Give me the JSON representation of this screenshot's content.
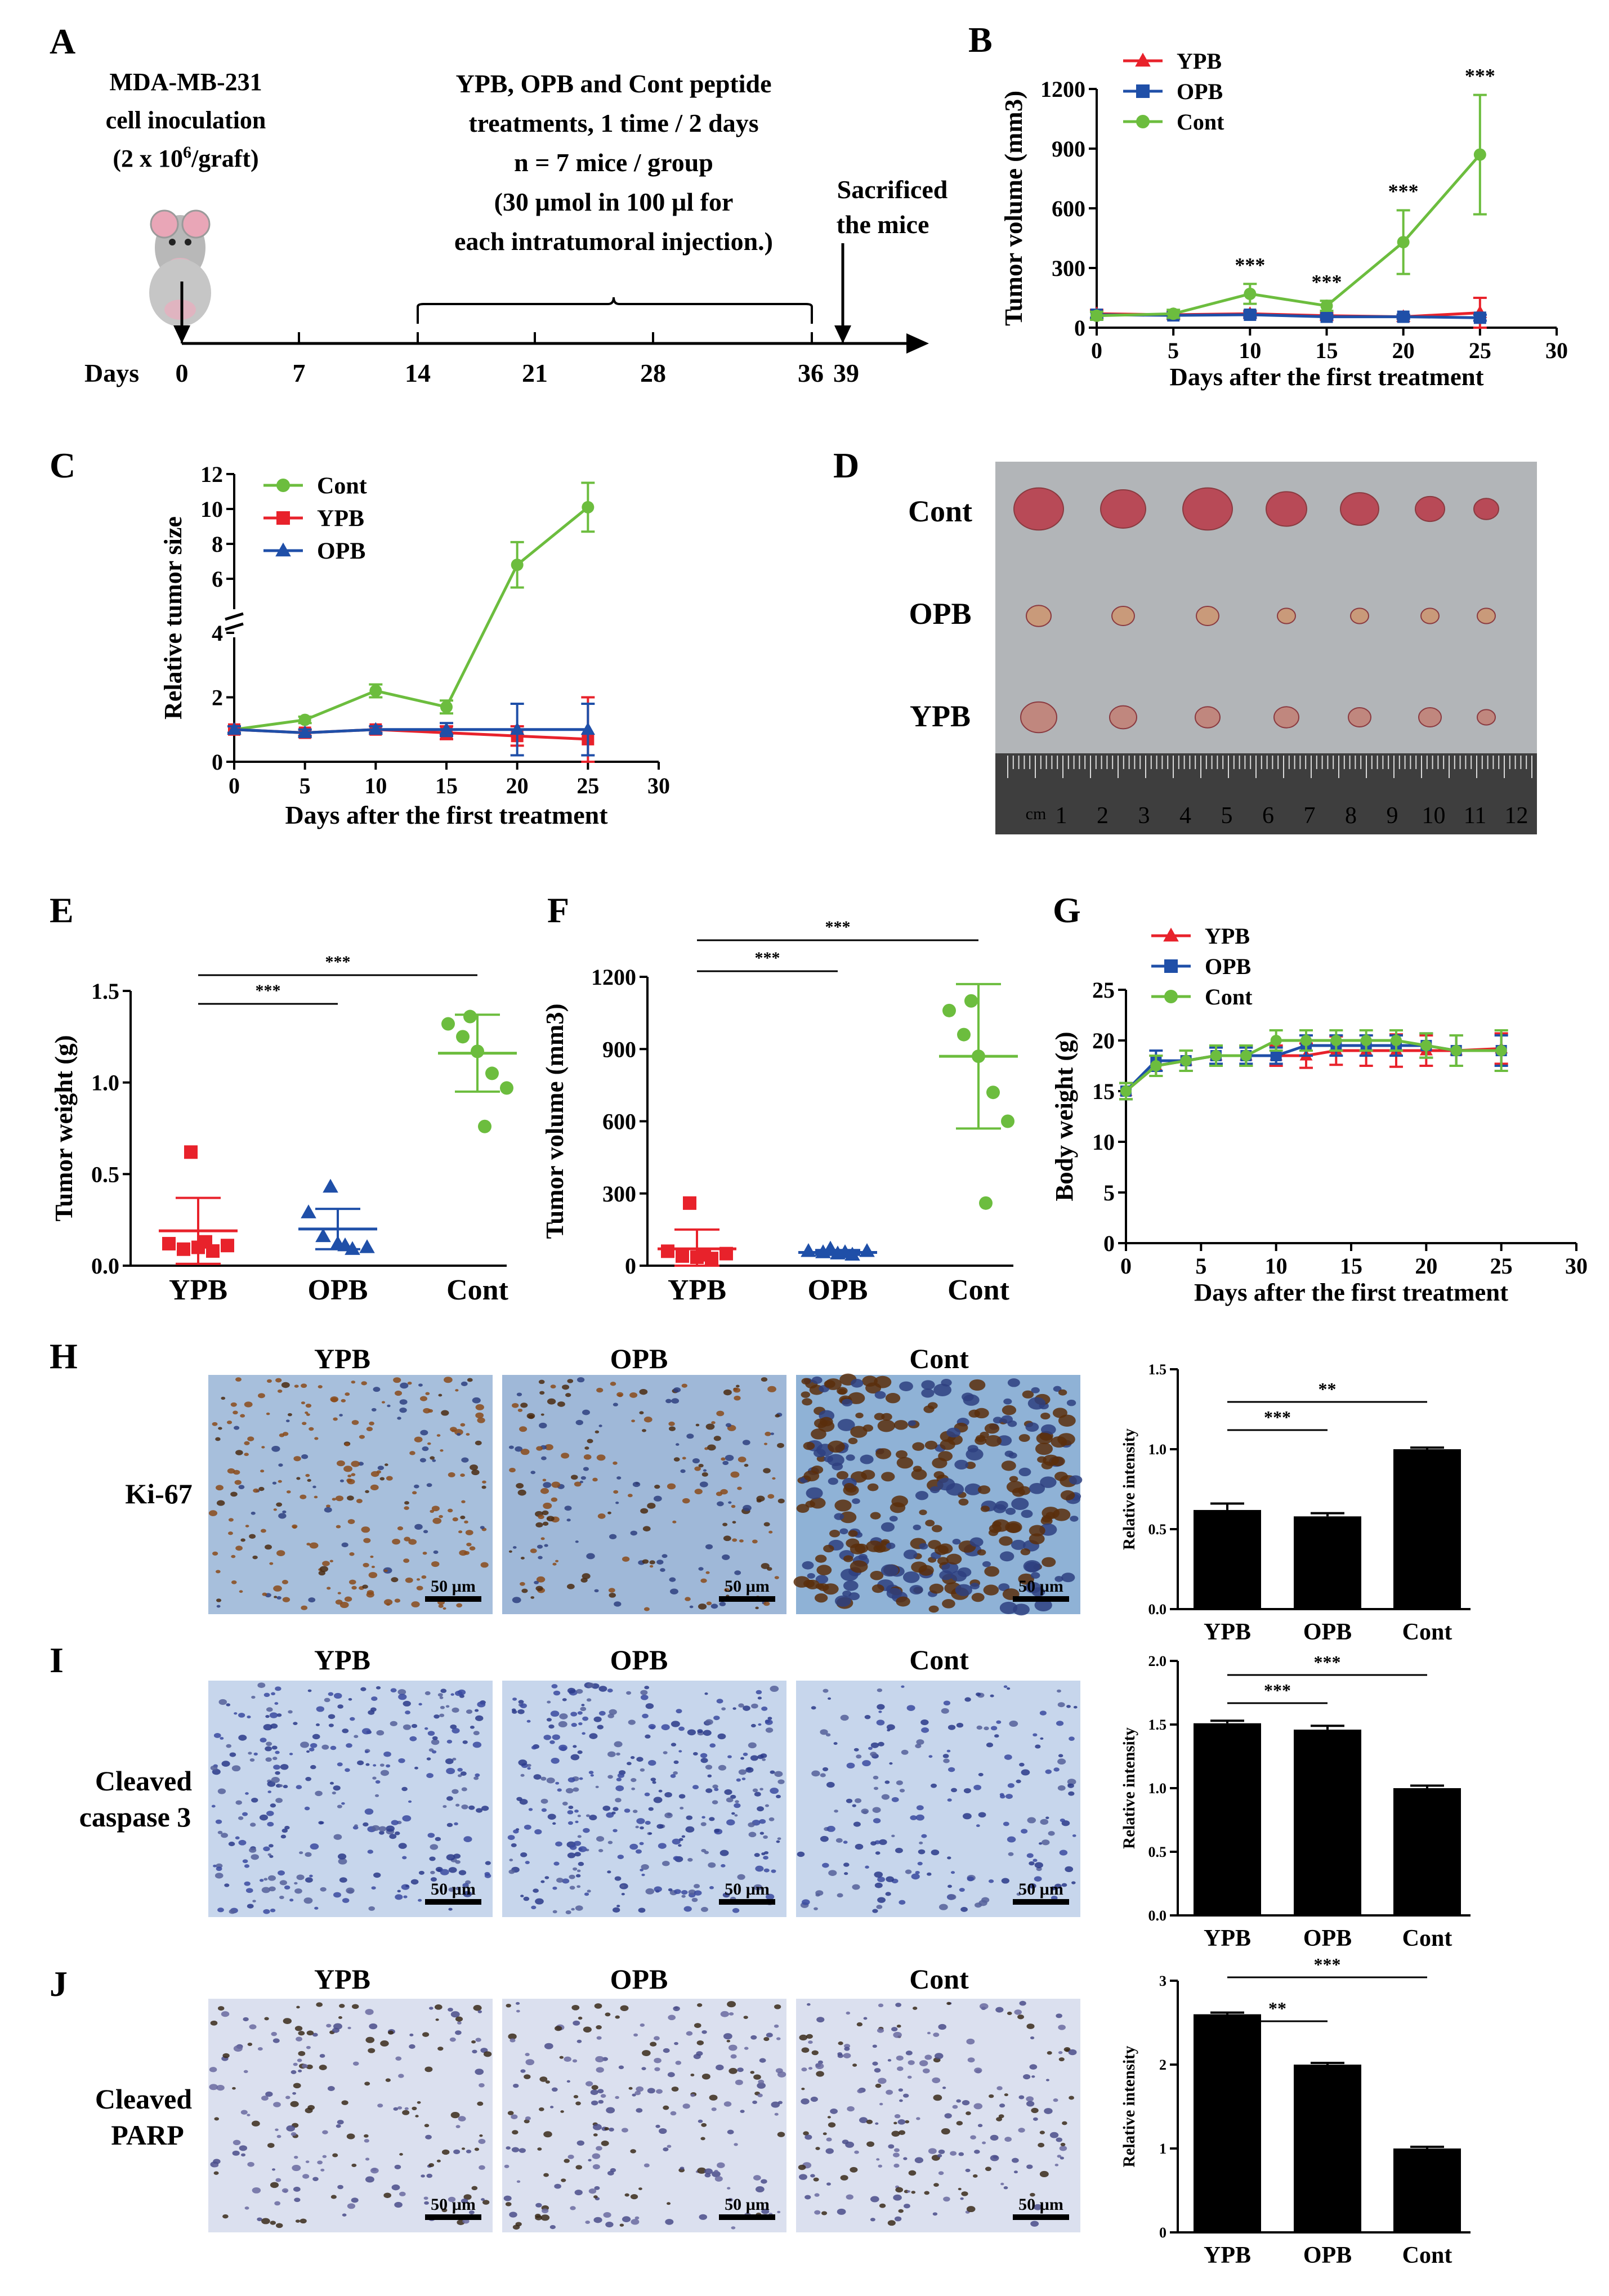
{
  "panel_letters": {
    "A": "A",
    "B": "B",
    "C": "C",
    "D": "D",
    "E": "E",
    "F": "F",
    "G": "G",
    "H": "H",
    "I": "I",
    "J": "J"
  },
  "panelA": {
    "inoculation_text": [
      "MDA-MB-231",
      "cell inoculation",
      "(2 x 10",
      "6",
      "/graft)"
    ],
    "treatment_text": [
      "YPB, OPB and Cont peptide",
      "treatments, 1 time / 2 days",
      "n = 7 mice / group",
      "(30 µmol in 100 µl for",
      "each intratumoral injection.)"
    ],
    "sacrifice_text": [
      "Sacrificed",
      "the mice"
    ],
    "days_label": "Days",
    "day_ticks": [
      "0",
      "7",
      "14",
      "21",
      "28",
      "36",
      "39"
    ],
    "mouse_icon": "mouse-icon"
  },
  "panelD": {
    "row_labels": [
      "Cont",
      "OPB",
      "YPB"
    ],
    "ruler_unit": "cm",
    "ruler_numbers": [
      "1",
      "2",
      "3",
      "4",
      "5",
      "6",
      "7",
      "8",
      "9",
      "10",
      "11",
      "12"
    ]
  },
  "ihc": {
    "column_labels": [
      "YPB",
      "OPB",
      "Cont"
    ],
    "row_labels": [
      "Ki-67",
      "Cleaved caspase 3",
      "Cleaved PARP"
    ],
    "scale_bar": "50 µm",
    "colors": {
      "ki67_bg": "#8fb2d6",
      "stain_brown": "#5a2e0c",
      "caspase_bg": "#c7d6ec",
      "parp_bg": "#dbe0ef"
    }
  },
  "colors": {
    "YPB": "#e8222b",
    "OPB": "#1f4fa8",
    "Cont": "#6cbd3e"
  },
  "chart_data": [
    {
      "panel": "B",
      "type": "line",
      "xlabel": "Days after the first treatment",
      "ylabel": "Tumor volume (mm3)",
      "xlim": [
        0,
        30
      ],
      "ylim": [
        0,
        1200
      ],
      "xticks": [
        "0",
        "5",
        "10",
        "15",
        "20",
        "25",
        "30"
      ],
      "yticks": [
        "0",
        "300",
        "600",
        "900",
        "1200"
      ],
      "x": [
        0,
        5,
        10,
        15,
        20,
        25
      ],
      "series": [
        {
          "name": "YPB",
          "marker": "triangle",
          "values": [
            70,
            65,
            70,
            60,
            55,
            75
          ],
          "errors": [
            20,
            15,
            15,
            15,
            10,
            75
          ]
        },
        {
          "name": "OPB",
          "marker": "square",
          "values": [
            65,
            62,
            65,
            55,
            55,
            50
          ],
          "errors": [
            15,
            15,
            15,
            10,
            10,
            15
          ]
        },
        {
          "name": "Cont",
          "marker": "circle",
          "values": [
            60,
            70,
            170,
            110,
            430,
            870
          ],
          "errors": [
            20,
            20,
            50,
            25,
            160,
            300
          ]
        }
      ],
      "annotations": [
        {
          "x": 10,
          "text": "***"
        },
        {
          "x": 15,
          "text": "***"
        },
        {
          "x": 20,
          "text": "***"
        },
        {
          "x": 25,
          "text": "***"
        }
      ],
      "legend": "top-left"
    },
    {
      "panel": "C",
      "type": "line",
      "xlabel": "Days after the first treatment",
      "ylabel": "Relative tumor size",
      "xlim": [
        0,
        30
      ],
      "broken_axis": true,
      "xticks": [
        "0",
        "5",
        "10",
        "15",
        "20",
        "25",
        "30"
      ],
      "yticks": [
        "0",
        "2",
        "4",
        "6",
        "8",
        "10",
        "12"
      ],
      "x": [
        0,
        5,
        10,
        15,
        20,
        25
      ],
      "series": [
        {
          "name": "Cont",
          "marker": "circle",
          "values": [
            1.0,
            1.3,
            2.2,
            1.7,
            6.8,
            10.1
          ],
          "errors": [
            0.1,
            0.1,
            0.2,
            0.2,
            1.3,
            1.4
          ]
        },
        {
          "name": "YPB",
          "marker": "square",
          "values": [
            1.0,
            0.9,
            1.0,
            0.9,
            0.8,
            0.7
          ],
          "errors": [
            0.1,
            0.1,
            0.1,
            0.2,
            0.3,
            1.3
          ]
        },
        {
          "name": "OPB",
          "marker": "triangle",
          "values": [
            1.0,
            0.9,
            1.0,
            1.0,
            1.0,
            1.0
          ],
          "errors": [
            0.1,
            0.1,
            0.1,
            0.2,
            0.8,
            0.8
          ]
        }
      ],
      "legend": "top-left"
    },
    {
      "panel": "E",
      "type": "scatter",
      "ylabel": "Tumor weight (g)",
      "ylim": [
        0,
        1.5
      ],
      "yticks": [
        "0.0",
        "0.5",
        "1.0",
        "1.5"
      ],
      "categories": [
        "YPB",
        "OPB",
        "Cont"
      ],
      "series": [
        {
          "name": "YPB",
          "marker": "square",
          "values": [
            0.62,
            0.12,
            0.09,
            0.1,
            0.08,
            0.11,
            0.13
          ],
          "mean": 0.19,
          "sd": 0.18
        },
        {
          "name": "OPB",
          "marker": "triangle",
          "values": [
            0.43,
            0.29,
            0.16,
            0.12,
            0.09,
            0.1,
            0.11
          ],
          "mean": 0.2,
          "sd": 0.11
        },
        {
          "name": "Cont",
          "marker": "circle",
          "values": [
            1.36,
            1.32,
            1.25,
            1.17,
            1.05,
            0.97,
            0.76
          ],
          "mean": 1.16,
          "sd": 0.21
        }
      ],
      "annotations": [
        {
          "between": [
            "YPB",
            "OPB"
          ],
          "text": "***"
        },
        {
          "between": [
            "YPB",
            "Cont"
          ],
          "text": "***"
        }
      ]
    },
    {
      "panel": "F",
      "type": "scatter",
      "ylabel": "Tumor volume (mm3)",
      "ylim": [
        0,
        1200
      ],
      "yticks": [
        "0",
        "300",
        "600",
        "900",
        "1200"
      ],
      "categories": [
        "YPB",
        "OPB",
        "Cont"
      ],
      "series": [
        {
          "name": "YPB",
          "marker": "square",
          "values": [
            260,
            60,
            40,
            35,
            30,
            50,
            45
          ],
          "mean": 70,
          "sd": 80
        },
        {
          "name": "OPB",
          "marker": "triangle",
          "values": [
            70,
            60,
            55,
            50,
            45,
            60,
            55
          ],
          "mean": 55,
          "sd": 10
        },
        {
          "name": "Cont",
          "marker": "circle",
          "values": [
            1100,
            1060,
            960,
            870,
            720,
            600,
            260
          ],
          "mean": 870,
          "sd": 300
        }
      ],
      "annotations": [
        {
          "between": [
            "YPB",
            "OPB"
          ],
          "text": "***"
        },
        {
          "between": [
            "YPB",
            "Cont"
          ],
          "text": "***"
        }
      ]
    },
    {
      "panel": "G",
      "type": "line",
      "xlabel": "Days after the first treatment",
      "ylabel": "Body weight (g)",
      "xlim": [
        0,
        30
      ],
      "ylim": [
        0,
        25
      ],
      "xticks": [
        "0",
        "5",
        "10",
        "15",
        "20",
        "25",
        "30"
      ],
      "yticks": [
        "0",
        "5",
        "10",
        "15",
        "20",
        "25"
      ],
      "x": [
        0,
        2,
        4,
        6,
        8,
        10,
        12,
        14,
        16,
        18,
        20,
        22,
        25
      ],
      "series": [
        {
          "name": "YPB",
          "marker": "triangle",
          "values": [
            15,
            17.5,
            18,
            18.5,
            18.5,
            18.5,
            18.5,
            19,
            19,
            19,
            19,
            19,
            19.2
          ],
          "errors": [
            0.8,
            1,
            1,
            1,
            1,
            1,
            1.2,
            1.4,
            1.5,
            1.6,
            1.5,
            1.5,
            1.5
          ]
        },
        {
          "name": "OPB",
          "marker": "square",
          "values": [
            15,
            18,
            18,
            18.5,
            18.5,
            18.5,
            19.5,
            19.5,
            19.5,
            19.5,
            19.5,
            19,
            19
          ],
          "errors": [
            0.8,
            1,
            1,
            0.8,
            0.8,
            0.8,
            1,
            1,
            1,
            1,
            1.2,
            1.5,
            1.5
          ]
        },
        {
          "name": "Cont",
          "marker": "circle",
          "values": [
            15,
            17.5,
            18,
            18.5,
            18.5,
            20,
            20,
            20,
            20,
            20,
            19.5,
            19,
            19
          ],
          "errors": [
            0.8,
            1,
            1,
            1,
            1,
            1,
            1,
            1,
            1,
            1,
            1.2,
            1.5,
            2
          ]
        }
      ],
      "legend": "top-left"
    },
    {
      "panel": "H",
      "type": "bar",
      "ylabel": "Relative intensity",
      "ylim": [
        0,
        1.5
      ],
      "yticks": [
        "0.0",
        "0.5",
        "1.0",
        "1.5"
      ],
      "categories": [
        "YPB",
        "OPB",
        "Cont"
      ],
      "values": [
        0.62,
        0.58,
        1.0
      ],
      "errors": [
        0.04,
        0.02,
        0.01
      ],
      "annotations": [
        {
          "between": [
            "YPB",
            "OPB"
          ],
          "text": "***"
        },
        {
          "between": [
            "YPB",
            "Cont"
          ],
          "text": "**"
        }
      ]
    },
    {
      "panel": "I",
      "type": "bar",
      "ylabel": "Relative intensity",
      "ylim": [
        0,
        2.0
      ],
      "yticks": [
        "0.0",
        "0.5",
        "1.0",
        "1.5",
        "2.0"
      ],
      "categories": [
        "YPB",
        "OPB",
        "Cont"
      ],
      "values": [
        1.51,
        1.46,
        1.0
      ],
      "errors": [
        0.02,
        0.03,
        0.02
      ],
      "annotations": [
        {
          "between": [
            "YPB",
            "OPB"
          ],
          "text": "***"
        },
        {
          "between": [
            "YPB",
            "Cont"
          ],
          "text": "***"
        }
      ]
    },
    {
      "panel": "J",
      "type": "bar",
      "ylabel": "Relative intensity",
      "ylim": [
        0,
        3
      ],
      "yticks": [
        "0",
        "1",
        "2",
        "3"
      ],
      "categories": [
        "YPB",
        "OPB",
        "Cont"
      ],
      "values": [
        2.6,
        2.0,
        1.0
      ],
      "errors": [
        0.02,
        0.02,
        0.02
      ],
      "annotations": [
        {
          "between": [
            "YPB",
            "OPB"
          ],
          "text": "**"
        },
        {
          "between": [
            "YPB",
            "Cont"
          ],
          "text": "***"
        }
      ]
    }
  ]
}
